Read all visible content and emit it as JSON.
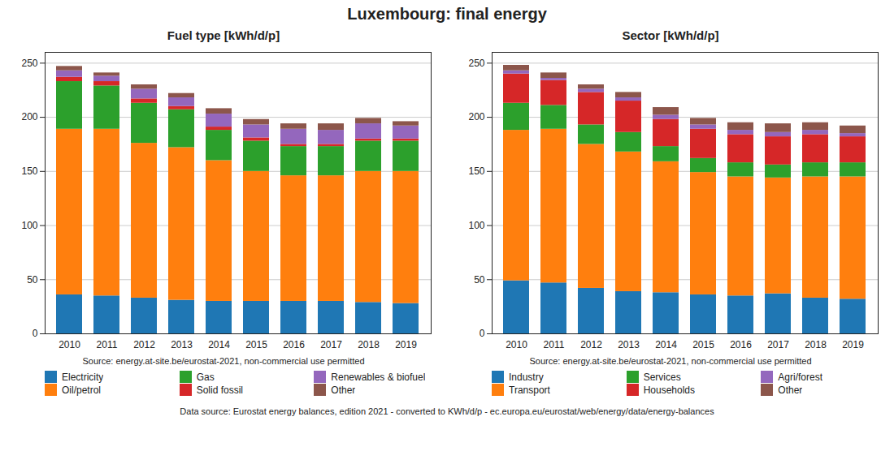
{
  "title": "Luxembourg: final energy",
  "annotations": [
    "Data source: Eurostat energy balances, edition 2021 - converted to KWh/d/p - ec.europa.eu/eurostat/web/energy/data/energy-balances"
  ],
  "chart_data": [
    {
      "type": "bar",
      "stacked": true,
      "title": "Fuel type [kWh/d/p]",
      "annotations": [
        "Source: energy.at-site.be/eurostat-2021, non-commercial use permitted"
      ],
      "categories": [
        "2010",
        "2011",
        "2012",
        "2013",
        "2014",
        "2015",
        "2016",
        "2017",
        "2018",
        "2019"
      ],
      "series": [
        {
          "name": "Electricity",
          "color": "#1f77b4",
          "values": [
            36,
            35,
            33,
            31,
            30,
            30,
            30,
            30,
            29,
            28
          ]
        },
        {
          "name": "Oil/petrol",
          "color": "#ff7f0e",
          "values": [
            153,
            154,
            143,
            141,
            130,
            120,
            116,
            116,
            121,
            122
          ]
        },
        {
          "name": "Gas",
          "color": "#2ca02c",
          "values": [
            44,
            40,
            37,
            35,
            28,
            28,
            27,
            27,
            28,
            28
          ]
        },
        {
          "name": "Solid fossil",
          "color": "#d62728",
          "values": [
            4,
            4,
            4,
            3,
            3,
            3,
            2,
            2,
            2,
            2
          ]
        },
        {
          "name": "Renewables & biofuel",
          "color": "#9467bd",
          "values": [
            6,
            5,
            9,
            8,
            12,
            12,
            14,
            13,
            14,
            12
          ]
        },
        {
          "name": "Other",
          "color": "#8c564b",
          "values": [
            4,
            3,
            4,
            4,
            5,
            5,
            5,
            6,
            5,
            4
          ]
        }
      ],
      "ylim": [
        0,
        260
      ],
      "yticks": [
        0,
        50,
        100,
        150,
        200,
        250
      ],
      "grid": true,
      "legend": "bottom"
    },
    {
      "type": "bar",
      "stacked": true,
      "title": "Sector [kWh/d/p]",
      "annotations": [
        "Source: energy.at-site.be/eurostat-2021, non-commercial use permitted"
      ],
      "categories": [
        "2010",
        "2011",
        "2012",
        "2013",
        "2014",
        "2015",
        "2016",
        "2017",
        "2018",
        "2019"
      ],
      "series": [
        {
          "name": "Industry",
          "color": "#1f77b4",
          "values": [
            49,
            47,
            42,
            39,
            38,
            36,
            35,
            37,
            33,
            32
          ]
        },
        {
          "name": "Transport",
          "color": "#ff7f0e",
          "values": [
            139,
            142,
            133,
            129,
            121,
            113,
            110,
            107,
            112,
            113
          ]
        },
        {
          "name": "Services",
          "color": "#2ca02c",
          "values": [
            25,
            22,
            18,
            18,
            14,
            13,
            13,
            12,
            13,
            13
          ]
        },
        {
          "name": "Households",
          "color": "#d62728",
          "values": [
            27,
            23,
            30,
            29,
            25,
            27,
            26,
            26,
            26,
            24
          ]
        },
        {
          "name": "Agri/forest",
          "color": "#9467bd",
          "values": [
            3,
            2,
            3,
            3,
            4,
            4,
            4,
            4,
            4,
            3
          ]
        },
        {
          "name": "Other",
          "color": "#8c564b",
          "values": [
            5,
            5,
            4,
            5,
            7,
            6,
            7,
            8,
            7,
            7
          ]
        }
      ],
      "ylim": [
        0,
        260
      ],
      "yticks": [
        0,
        50,
        100,
        150,
        200,
        250
      ],
      "grid": true,
      "legend": "bottom"
    }
  ]
}
